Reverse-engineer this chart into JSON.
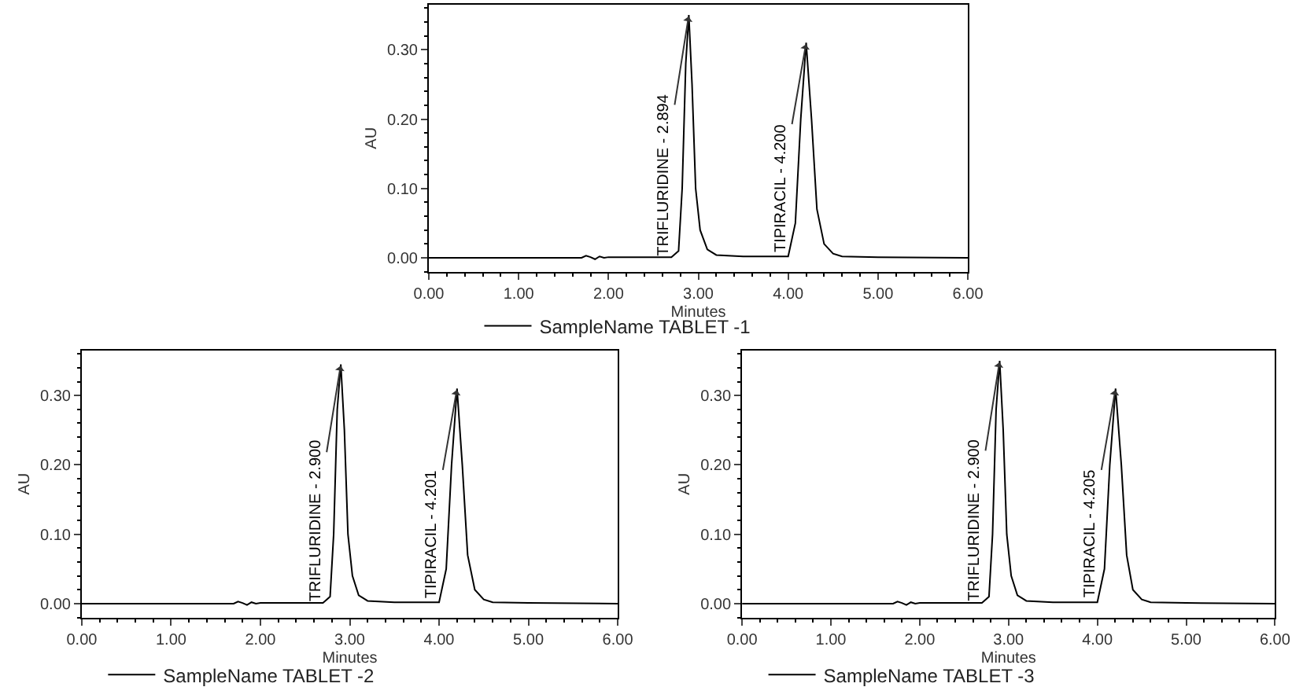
{
  "chart_data": [
    {
      "type": "line",
      "xlabel": "Minutes",
      "ylabel": "AU",
      "legend": "bottom",
      "grid": false,
      "marker": "none",
      "line_style": "solid",
      "xlim": [
        0,
        6
      ],
      "xticks": [
        {
          "value": 0,
          "label": "0.00"
        },
        {
          "value": 1,
          "label": "1.00"
        },
        {
          "value": 2,
          "label": "2.00"
        },
        {
          "value": 3,
          "label": "3.00"
        },
        {
          "value": 4,
          "label": "4.00"
        },
        {
          "value": 5,
          "label": "5.00"
        },
        {
          "value": 6,
          "label": "6.00"
        }
      ],
      "ylim": [
        -0.02,
        0.365
      ],
      "yticks": [
        {
          "value": 0,
          "label": "0.00"
        },
        {
          "value": 0.1,
          "label": "0.10"
        },
        {
          "value": 0.2,
          "label": "0.20"
        },
        {
          "value": 0.3,
          "label": "0.30"
        }
      ],
      "x": [
        0,
        1.0,
        1.7,
        1.75,
        1.8,
        1.85,
        1.9,
        1.95,
        2.0,
        2.7,
        2.78,
        2.82,
        2.86,
        2.894,
        2.93,
        2.97,
        3.02,
        3.1,
        3.2,
        3.5,
        4.0,
        4.08,
        4.14,
        4.2,
        4.26,
        4.32,
        4.4,
        4.5,
        4.6,
        5.0,
        6.0
      ],
      "series": [
        {
          "name": "SampleName TABLET -1",
          "color": "#000000",
          "values": [
            0,
            0,
            0,
            0.003,
            0.001,
            -0.002,
            0.002,
            0,
            0.001,
            0.001,
            0.01,
            0.1,
            0.28,
            0.35,
            0.25,
            0.1,
            0.04,
            0.012,
            0.004,
            0.002,
            0.002,
            0.05,
            0.2,
            0.31,
            0.2,
            0.07,
            0.02,
            0.006,
            0.002,
            0.001,
            0
          ]
        }
      ],
      "annotations": [
        {
          "text": "TRIFLURIDINE - 2.894",
          "x": 2.894,
          "y": 0.35
        },
        {
          "text": "TIPIRACIL - 4.200",
          "x": 4.2,
          "y": 0.31
        }
      ]
    },
    {
      "type": "line",
      "xlabel": "Minutes",
      "ylabel": "AU",
      "legend": "bottom",
      "grid": false,
      "marker": "none",
      "line_style": "solid",
      "xlim": [
        0,
        6
      ],
      "xticks": [
        {
          "value": 0,
          "label": "0.00"
        },
        {
          "value": 1,
          "label": "1.00"
        },
        {
          "value": 2,
          "label": "2.00"
        },
        {
          "value": 3,
          "label": "3.00"
        },
        {
          "value": 4,
          "label": "4.00"
        },
        {
          "value": 5,
          "label": "5.00"
        },
        {
          "value": 6,
          "label": "6.00"
        }
      ],
      "ylim": [
        -0.02,
        0.365
      ],
      "yticks": [
        {
          "value": 0,
          "label": "0.00"
        },
        {
          "value": 0.1,
          "label": "0.10"
        },
        {
          "value": 0.2,
          "label": "0.20"
        },
        {
          "value": 0.3,
          "label": "0.30"
        }
      ],
      "x": [
        0,
        1.0,
        1.7,
        1.75,
        1.8,
        1.85,
        1.9,
        1.95,
        2.0,
        2.7,
        2.78,
        2.82,
        2.86,
        2.9,
        2.94,
        2.98,
        3.03,
        3.1,
        3.2,
        3.5,
        4.0,
        4.08,
        4.14,
        4.201,
        4.26,
        4.32,
        4.4,
        4.5,
        4.6,
        5.0,
        6.0
      ],
      "series": [
        {
          "name": "SampleName TABLET -2",
          "color": "#000000",
          "values": [
            0,
            0,
            0,
            0.003,
            0.001,
            -0.002,
            0.002,
            0,
            0.001,
            0.001,
            0.01,
            0.1,
            0.28,
            0.345,
            0.25,
            0.1,
            0.04,
            0.012,
            0.004,
            0.002,
            0.002,
            0.05,
            0.2,
            0.31,
            0.2,
            0.07,
            0.02,
            0.006,
            0.002,
            0.001,
            0
          ]
        }
      ],
      "annotations": [
        {
          "text": "TRIFLURIDINE - 2.900",
          "x": 2.9,
          "y": 0.345
        },
        {
          "text": "TIPIRACIL - 4.201",
          "x": 4.201,
          "y": 0.31
        }
      ]
    },
    {
      "type": "line",
      "xlabel": "Minutes",
      "ylabel": "AU",
      "legend": "bottom",
      "grid": false,
      "marker": "none",
      "line_style": "solid",
      "xlim": [
        0,
        6
      ],
      "xticks": [
        {
          "value": 0,
          "label": "0.00"
        },
        {
          "value": 1,
          "label": "1.00"
        },
        {
          "value": 2,
          "label": "2.00"
        },
        {
          "value": 3,
          "label": "3.00"
        },
        {
          "value": 4,
          "label": "4.00"
        },
        {
          "value": 5,
          "label": "5.00"
        },
        {
          "value": 6,
          "label": "6.00"
        }
      ],
      "ylim": [
        -0.02,
        0.365
      ],
      "yticks": [
        {
          "value": 0,
          "label": "0.00"
        },
        {
          "value": 0.1,
          "label": "0.10"
        },
        {
          "value": 0.2,
          "label": "0.20"
        },
        {
          "value": 0.3,
          "label": "0.30"
        }
      ],
      "x": [
        0,
        1.0,
        1.7,
        1.75,
        1.8,
        1.85,
        1.9,
        1.95,
        2.0,
        2.7,
        2.78,
        2.82,
        2.86,
        2.9,
        2.94,
        2.98,
        3.03,
        3.1,
        3.2,
        3.5,
        4.0,
        4.08,
        4.14,
        4.205,
        4.27,
        4.33,
        4.4,
        4.5,
        4.6,
        5.0,
        6.0
      ],
      "series": [
        {
          "name": "SampleName TABLET -3",
          "color": "#000000",
          "values": [
            0,
            0,
            0,
            0.003,
            0.001,
            -0.002,
            0.002,
            0,
            0.001,
            0.001,
            0.01,
            0.1,
            0.28,
            0.35,
            0.25,
            0.1,
            0.04,
            0.012,
            0.004,
            0.002,
            0.002,
            0.05,
            0.2,
            0.31,
            0.2,
            0.07,
            0.02,
            0.006,
            0.002,
            0.001,
            0
          ]
        }
      ],
      "annotations": [
        {
          "text": "TRIFLURIDINE - 2.900",
          "x": 2.9,
          "y": 0.35
        },
        {
          "text": "TIPIRACIL - 4.205",
          "x": 4.205,
          "y": 0.31
        }
      ]
    }
  ]
}
